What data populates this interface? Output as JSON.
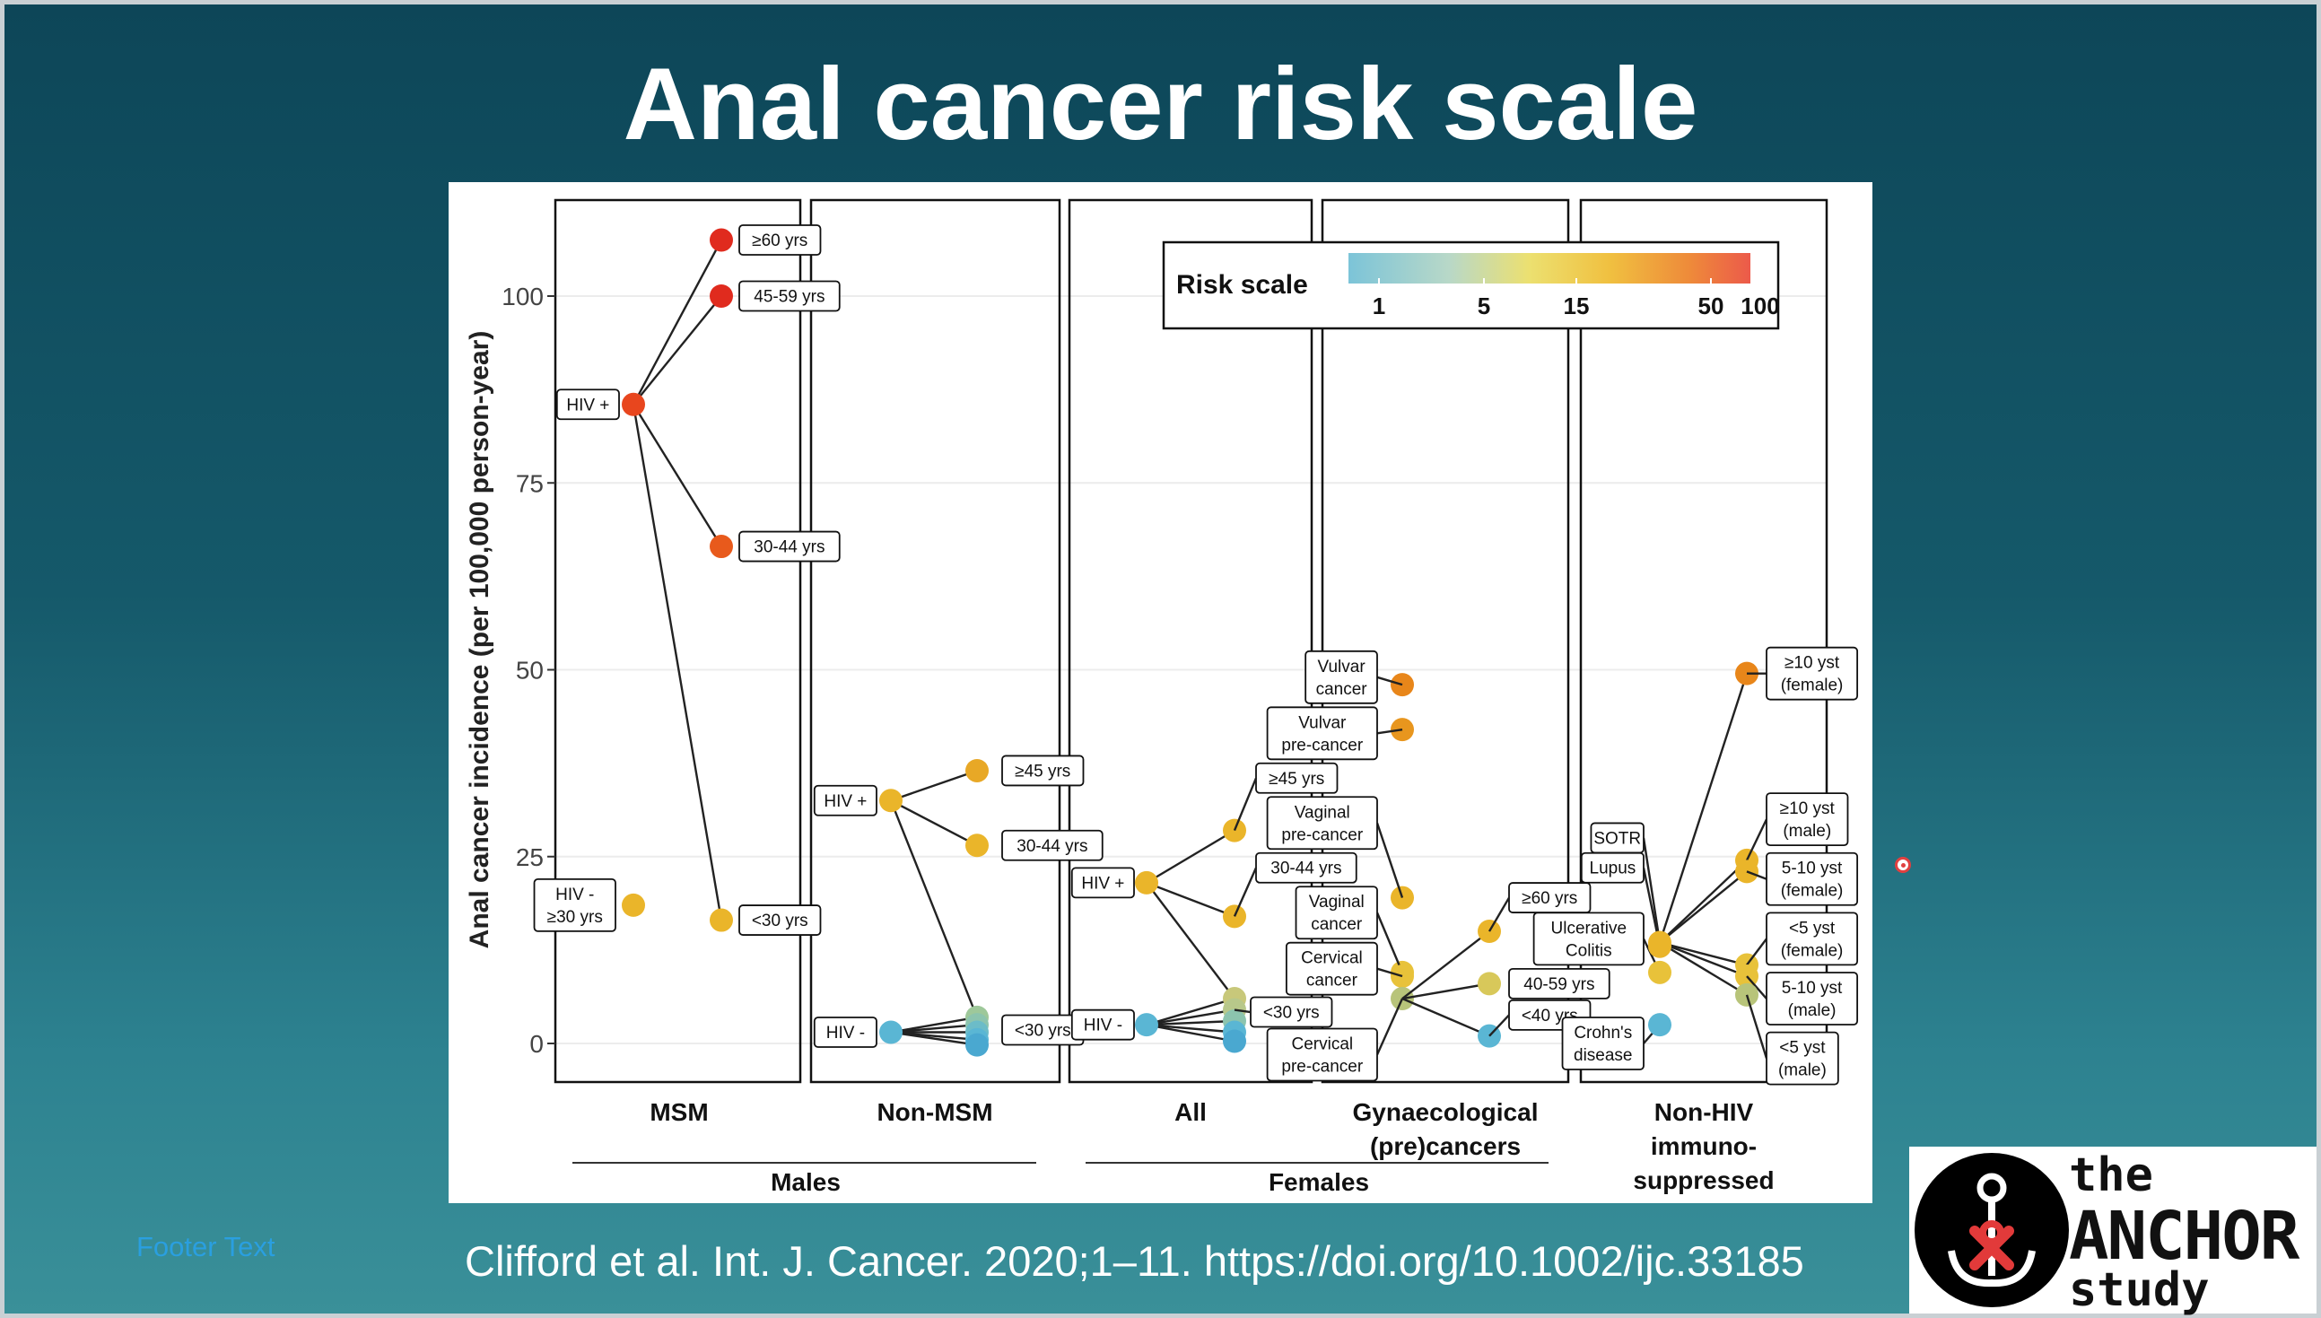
{
  "slide": {
    "title": "Anal cancer risk scale",
    "footer_text": "Footer Text",
    "citation": "Clifford et al. Int. J. Cancer. 2020;1–11. https://doi.org/10.1002/ijc.33185"
  },
  "logo": {
    "line1": "the",
    "line2": "ANCHOR",
    "line3": "study",
    "icon": "anchor-ribbon-icon"
  },
  "chart_data": {
    "type": "scatter",
    "ylabel": "Anal cancer incidence (per 100,000 person-year)",
    "ylim": [
      -5,
      113
    ],
    "yticks": [
      0,
      25,
      50,
      75,
      100
    ],
    "legend": {
      "title": "Risk scale",
      "placement": "top-right",
      "ticks": [
        "1",
        "5",
        "15",
        "50",
        "100"
      ]
    },
    "colors": {
      "low": "#5ab6d4",
      "mid_low": "#b8cc7a",
      "mid": "#e8b52a",
      "high": "#e87a1a",
      "top": "#e23a1c"
    },
    "panels": [
      {
        "label": "MSM",
        "nodes": [
          {
            "label": "HIV +",
            "value": 85.5,
            "color": "#e8461e"
          },
          {
            "label": "≥60 yrs",
            "value": 107.5,
            "color": "#e02b1e"
          },
          {
            "label": "45-59 yrs",
            "value": 100,
            "color": "#e02b1e"
          },
          {
            "label": "30-44 yrs",
            "value": 66.5,
            "color": "#e85a1c"
          },
          {
            "label": "<30 yrs",
            "value": 16.5,
            "color": "#eab52a"
          },
          {
            "label": "HIV -\n≥30 yrs",
            "value": 18.5,
            "color": "#eab52a"
          }
        ]
      },
      {
        "label": "Non-MSM",
        "nodes": [
          {
            "label": "HIV +",
            "value": 32.5,
            "color": "#eab52a"
          },
          {
            "label": "≥45 yrs",
            "value": 36.5,
            "color": "#e8a826"
          },
          {
            "label": "30-44 yrs",
            "value": 26.5,
            "color": "#eab52a"
          },
          {
            "label": "<30 yrs",
            "value": 3.5,
            "color": "#9ec89a"
          },
          {
            "label": "HIV -",
            "value": 1.5,
            "color": "#5ab6d4"
          }
        ]
      },
      {
        "label": "All",
        "nodes": [
          {
            "label": "HIV +",
            "value": 21.5,
            "color": "#eab52a"
          },
          {
            "label": "≥45 yrs",
            "value": 28.5,
            "color": "#eab52a"
          },
          {
            "label": "30-44 yrs",
            "value": 17,
            "color": "#eab52a"
          },
          {
            "label": "<30 yrs",
            "value": 6,
            "color": "#c8c87a"
          },
          {
            "label": "HIV -",
            "value": 2.5,
            "color": "#5ab6d4"
          }
        ]
      },
      {
        "label": "Gynaecological\n(pre)cancers",
        "nodes": [
          {
            "label": "Vulvar\ncancer",
            "value": 48,
            "color": "#e8861a"
          },
          {
            "label": "Vulvar\npre-cancer",
            "value": 42,
            "color": "#e8961e"
          },
          {
            "label": "Vaginal\npre-cancer",
            "value": 19.5,
            "color": "#eab52a"
          },
          {
            "label": "Vaginal\ncancer",
            "value": 9.5,
            "color": "#e8c23a"
          },
          {
            "label": "Cervical\ncancer",
            "value": 9,
            "color": "#e8c23a"
          },
          {
            "label": "Cervical\npre-cancer",
            "value": 6,
            "color": "#b8c47a"
          },
          {
            "label": "≥60 yrs",
            "value": 15,
            "color": "#eab52a"
          },
          {
            "label": "40-59 yrs",
            "value": 8,
            "color": "#d8c85a"
          },
          {
            "label": "<40 yrs",
            "value": 1,
            "color": "#5ab6d4"
          }
        ]
      },
      {
        "label": "Non-HIV\nimmuno-\nsuppressed",
        "nodes": [
          {
            "label": "SOTR",
            "value": 13.5,
            "color": "#eab52a"
          },
          {
            "label": "Lupus",
            "value": 13,
            "color": "#eab52a"
          },
          {
            "label": "Ulcerative\nColitis",
            "value": 9.5,
            "color": "#e8c23a"
          },
          {
            "label": "Crohn's\ndisease",
            "value": 2.5,
            "color": "#5ab6d4"
          },
          {
            "label": "≥10 yst\n(female)",
            "value": 49.5,
            "color": "#e8861a"
          },
          {
            "label": "≥10 yst\n(male)",
            "value": 24.5,
            "color": "#eab52a"
          },
          {
            "label": "5-10 yst\n(female)",
            "value": 23,
            "color": "#eab52a"
          },
          {
            "label": "<5 yst\n(female)",
            "value": 10.5,
            "color": "#e8c23a"
          },
          {
            "label": "5-10 yst\n(male)",
            "value": 9,
            "color": "#e8c23a"
          },
          {
            "label": "<5 yst\n(male)",
            "value": 6.5,
            "color": "#b8c47a"
          }
        ]
      }
    ],
    "groups": [
      {
        "label": "Males"
      },
      {
        "label": "Females"
      }
    ]
  }
}
